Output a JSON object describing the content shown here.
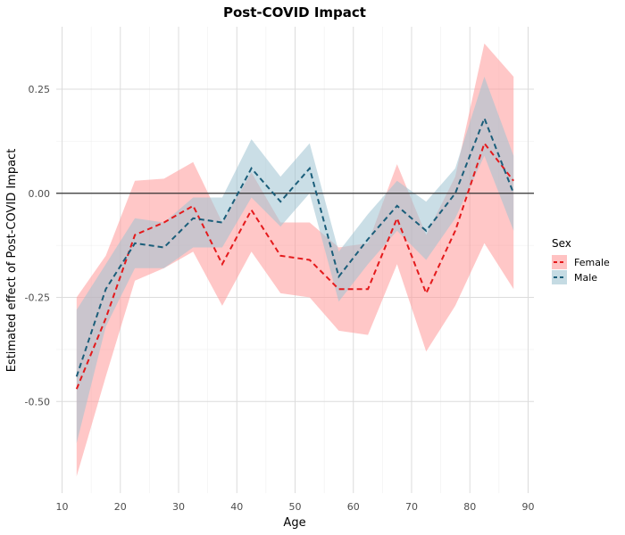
{
  "chart_data": {
    "type": "line",
    "title": "Post-COVID Impact",
    "xlabel": "Age",
    "ylabel": "Estimated effect of Post-COVID Impact",
    "xlim": [
      9,
      91
    ],
    "ylim": [
      -0.72,
      0.4
    ],
    "x_ticks": [
      10,
      20,
      30,
      40,
      50,
      60,
      70,
      80,
      90
    ],
    "y_ticks": [
      -0.5,
      -0.25,
      0.0,
      0.25
    ],
    "y_tick_labels": [
      "-0.50",
      "-0.25",
      "0.00",
      "0.25"
    ],
    "grid": true,
    "reference_line_y": 0,
    "legend": {
      "title": "Sex",
      "position": "right"
    },
    "x": [
      12.5,
      17.5,
      22.5,
      27.5,
      32.5,
      37.5,
      42.5,
      47.5,
      52.5,
      57.5,
      62.5,
      67.5,
      72.5,
      77.5,
      82.5,
      87.5
    ],
    "series": [
      {
        "name": "Female",
        "color": "#e41a1c",
        "ribbon_color": "#ff9999",
        "linetype": "dashed",
        "values": [
          -0.47,
          -0.3,
          -0.1,
          -0.07,
          -0.03,
          -0.17,
          -0.04,
          -0.15,
          -0.16,
          -0.23,
          -0.23,
          -0.06,
          -0.24,
          -0.09,
          0.12,
          0.03
        ],
        "lower": [
          -0.68,
          -0.44,
          -0.21,
          -0.18,
          -0.14,
          -0.27,
          -0.14,
          -0.24,
          -0.25,
          -0.33,
          -0.34,
          -0.17,
          -0.38,
          -0.27,
          -0.12,
          -0.23
        ],
        "upper": [
          -0.25,
          -0.15,
          0.03,
          0.035,
          0.075,
          -0.07,
          0.05,
          -0.07,
          -0.07,
          -0.13,
          -0.12,
          0.07,
          -0.1,
          0.04,
          0.36,
          0.28
        ]
      },
      {
        "name": "Male",
        "color": "#1b5e7a",
        "ribbon_color": "#9fc3d1",
        "linetype": "dashed",
        "values": [
          -0.44,
          -0.23,
          -0.12,
          -0.13,
          -0.06,
          -0.07,
          0.06,
          -0.02,
          0.06,
          -0.2,
          -0.11,
          -0.03,
          -0.09,
          0.0,
          0.18,
          0.0
        ],
        "lower": [
          -0.6,
          -0.32,
          -0.18,
          -0.18,
          -0.13,
          -0.13,
          -0.01,
          -0.08,
          0.0,
          -0.26,
          -0.17,
          -0.09,
          -0.16,
          -0.06,
          0.09,
          -0.09
        ],
        "upper": [
          -0.28,
          -0.17,
          -0.06,
          -0.07,
          -0.01,
          -0.01,
          0.13,
          0.04,
          0.12,
          -0.14,
          -0.05,
          0.03,
          -0.02,
          0.06,
          0.28,
          0.09
        ]
      }
    ]
  }
}
